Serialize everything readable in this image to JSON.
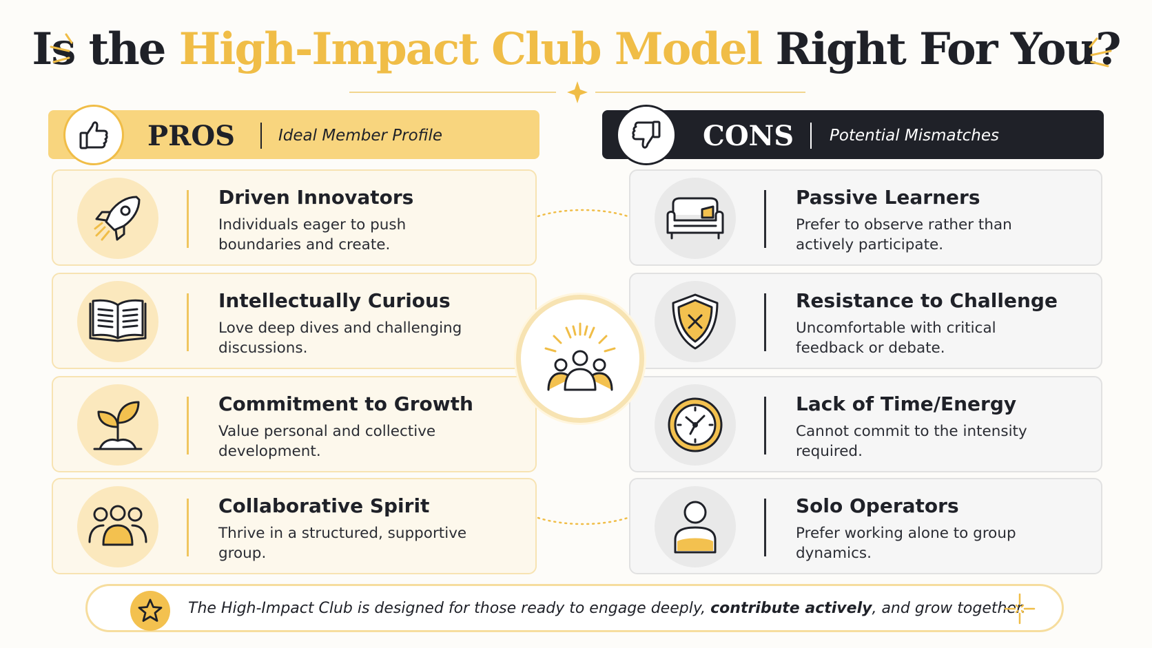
{
  "title": {
    "part1": "Is the ",
    "highlight": "High-Impact Club Model",
    "part2": " Right For You?"
  },
  "pros": {
    "heading": "PROS",
    "subheading": "Ideal Member Profile",
    "items": [
      {
        "icon": "rocket-icon",
        "title": "Driven Innovators",
        "desc": "Individuals eager to push boundaries and create."
      },
      {
        "icon": "open-book-icon",
        "title": "Intellectually Curious",
        "desc": "Love deep dives and challenging discussions."
      },
      {
        "icon": "sprout-icon",
        "title": "Commitment to Growth",
        "desc": "Value personal and collective development."
      },
      {
        "icon": "group-icon",
        "title": "Collaborative Spirit",
        "desc": "Thrive in a structured, supportive group."
      }
    ]
  },
  "cons": {
    "heading": "CONS",
    "subheading": "Potential Mismatches",
    "items": [
      {
        "icon": "couch-icon",
        "title": "Passive Learners",
        "desc": "Prefer to observe rather than actively participate."
      },
      {
        "icon": "shield-x-icon",
        "title": "Resistance to Challenge",
        "desc": "Uncomfortable with critical feedback or debate."
      },
      {
        "icon": "clock-icon",
        "title": "Lack of Time/Energy",
        "desc": "Cannot commit to the intensity required."
      },
      {
        "icon": "person-icon",
        "title": "Solo Operators",
        "desc": "Prefer working alone to group dynamics."
      }
    ]
  },
  "footer": {
    "text_before": "The High-Impact Club is designed for those ready to engage deeply, ",
    "text_bold": "contribute actively",
    "text_after": ", and grow together."
  },
  "colors": {
    "accent": "#f0bd47",
    "dark": "#1f2128",
    "pros_card_bg": "#fdf8ec",
    "cons_card_bg": "#f6f6f6"
  }
}
